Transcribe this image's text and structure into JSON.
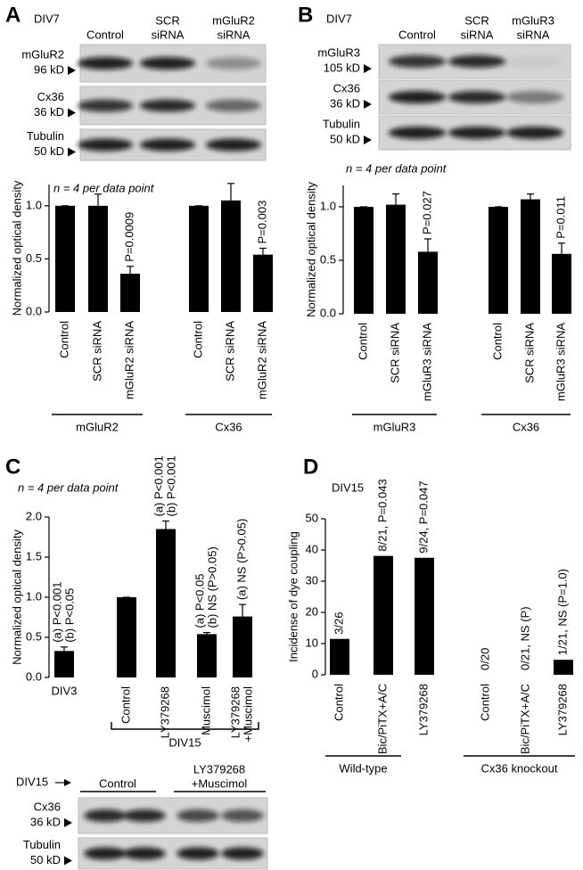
{
  "panels": [
    {
      "letter": "A",
      "header": "DIV7",
      "blot": {
        "columns": [
          [
            "Control"
          ],
          [
            "SCR",
            "siRNA"
          ],
          [
            "mGluR2",
            "siRNA"
          ]
        ],
        "rows": [
          [
            "mGluR2",
            "96 kD"
          ],
          [
            "Cx36",
            "36 kD"
          ],
          [
            "Tubulin",
            "50 kD"
          ]
        ]
      }
    },
    {
      "letter": "B",
      "header": "DIV7",
      "blot": {
        "columns": [
          [
            "Control"
          ],
          [
            "SCR",
            "siRNA"
          ],
          [
            "mGluR3",
            "siRNA"
          ]
        ],
        "rows": [
          [
            "mGluR3",
            "105 kD"
          ],
          [
            "Cx36",
            "36 kD"
          ],
          [
            "Tubulin",
            "50 kD"
          ]
        ]
      }
    },
    {
      "letter": "C",
      "blot": {
        "lane_label": "DIV15",
        "columns": [
          [
            "Control"
          ],
          [
            "LY379268",
            "+Muscimol"
          ]
        ],
        "rows": [
          [
            "Cx36",
            "36 kD"
          ],
          [
            "Tubulin",
            "50 kD"
          ]
        ]
      }
    },
    {
      "letter": "D",
      "header": "DIV15"
    }
  ],
  "chart_data": [
    {
      "type": "bar",
      "note": "n = 4 per data point",
      "ylabel": "Normalized optical density",
      "categories": [
        "Control",
        "SCR siRNA",
        "mGluR2 siRNA",
        "Control",
        "SCR siRNA",
        "mGluR2 siRNA"
      ],
      "values": [
        1.0,
        1.0,
        0.36,
        1.0,
        1.05,
        0.54
      ],
      "errors": [
        0,
        0.11,
        0.07,
        0,
        0.16,
        0.06
      ],
      "annotations": [
        null,
        null,
        [
          "P=0.0009"
        ],
        null,
        null,
        [
          "P=0.003"
        ]
      ],
      "groups": [
        "mGluR2",
        "Cx36"
      ],
      "color": "#000000",
      "ylim": [
        0,
        1.2
      ],
      "yticks": [
        {
          "value": 0,
          "label": "0.0"
        },
        0.5,
        {
          "value": 1,
          "label": "1.0"
        }
      ]
    },
    {
      "type": "bar",
      "note": "n = 4 per data point",
      "ylabel": "Normalized optical density",
      "categories": [
        "Control",
        "SCR siRNA",
        "mGluR3 siRNA",
        "Control",
        "SCR siRNA",
        "mGluR3 siRNA"
      ],
      "values": [
        1.0,
        1.02,
        0.58,
        1.0,
        1.07,
        0.56
      ],
      "errors": [
        0,
        0.1,
        0.12,
        0,
        0.05,
        0.1
      ],
      "annotations": [
        null,
        null,
        [
          "P=0.027"
        ],
        null,
        null,
        [
          "P=0.011"
        ]
      ],
      "groups": [
        "mGluR3",
        "Cx36"
      ],
      "color": "#000000",
      "ylim": [
        0,
        1.2
      ],
      "yticks": [
        {
          "value": 0,
          "label": "0.0"
        },
        0.5,
        {
          "value": 1,
          "label": "1.0"
        }
      ]
    },
    {
      "type": "bar",
      "note": "n = 4 per data point",
      "ylabel": "Normalized optical density",
      "categories": [
        "DIV3",
        "Control",
        "LY379268",
        "Muscimol",
        [
          "LY379268",
          "+Muscimol"
        ]
      ],
      "values": [
        0.33,
        1.0,
        1.85,
        0.54,
        0.76
      ],
      "errors": [
        0.05,
        0,
        0.1,
        0.02,
        0.15
      ],
      "annotations": [
        [
          "(a) P<0.001",
          "(b) P<0.05"
        ],
        null,
        [
          "(a) P<0.001",
          "(b) P<0.001"
        ],
        [
          "(a) P<0.05",
          "(b) NS (P>0.05)"
        ],
        [
          "(a) NS (P>0.05)"
        ]
      ],
      "groups": [
        "DIV15"
      ],
      "color": "#000000",
      "ylim": [
        0,
        2.0
      ],
      "yticks": [
        {
          "value": 0,
          "label": "0.0"
        },
        0.5,
        {
          "value": 1,
          "label": "1.0"
        },
        1.5,
        {
          "value": 2,
          "label": "2.0"
        }
      ]
    },
    {
      "type": "bar",
      "ylabel": "Incidense of dye coupling",
      "categories": [
        "Control",
        "Bic/PiTX+A/C",
        "LY379268",
        "Control",
        "Bic/PiTX+A/C",
        "LY379268"
      ],
      "values": [
        11.5,
        38.1,
        37.5,
        0,
        0,
        4.8
      ],
      "annotations": [
        [
          "3/26"
        ],
        [
          "8/21, P=0.043"
        ],
        [
          "9/24, P=0.047"
        ],
        [
          "0/20"
        ],
        [
          "0/21, NS (P)"
        ],
        [
          "1/21, NS (P=1.0)"
        ]
      ],
      "groups": [
        "Wild-type",
        "Cx36 knockout"
      ],
      "color": "#000000",
      "ylim": [
        0,
        50
      ],
      "yticks": [
        0,
        10,
        20,
        30,
        40,
        50
      ]
    }
  ]
}
